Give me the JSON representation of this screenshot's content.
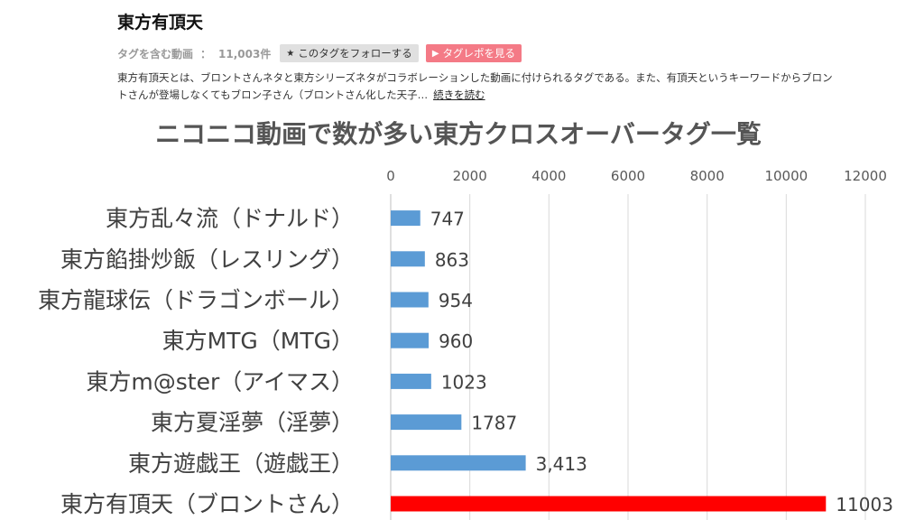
{
  "tag": {
    "title": "東方有頂天",
    "label": "タグを含む動画",
    "separator": "：",
    "count": "11,003件",
    "follow_label": "このタグをフォローする",
    "follow_icon": "star-icon",
    "report_label": "タグレポを見る",
    "report_icon": "play-icon",
    "report_color": "#f47a86",
    "description": "東方有頂天とは、ブロントさんネタと東方シリーズネタがコラボレーションした動画に付けられるタグである。また、有頂天というキーワードからブロントさんが登場しなくてもブロン子さん（ブロントさん化した天子…",
    "read_more": "続きを読む"
  },
  "chart_data": {
    "type": "bar",
    "orientation": "horizontal",
    "title": "ニコニコ動画で数が多い東方クロスオーバータグ一覧",
    "categories": [
      "東方乱々流（ドナルド）",
      "東方餡掛炒飯（レスリング）",
      "東方龍球伝（ドラゴンボール）",
      "東方MTG（MTG）",
      "東方m@ster（アイマス）",
      "東方夏淫夢（淫夢）",
      "東方遊戯王（遊戯王）",
      "東方有頂天（ブロントさん）"
    ],
    "values": [
      747,
      863,
      954,
      960,
      1023,
      1787,
      3413,
      11003
    ],
    "data_labels": [
      "747",
      "863",
      "954",
      "960",
      "1023",
      "1787",
      "3,413",
      "11003"
    ],
    "xlim": [
      0,
      12000
    ],
    "xticks": [
      "0",
      "2000",
      "4000",
      "6000",
      "8000",
      "10000",
      "12000"
    ],
    "tick_values": [
      0,
      2000,
      4000,
      6000,
      8000,
      10000,
      12000
    ],
    "axis_position": "top",
    "grid": true,
    "legend": "none",
    "bar_color": "#5b9bd5",
    "highlight_color": "#ff0000",
    "highlight_index": 7
  }
}
